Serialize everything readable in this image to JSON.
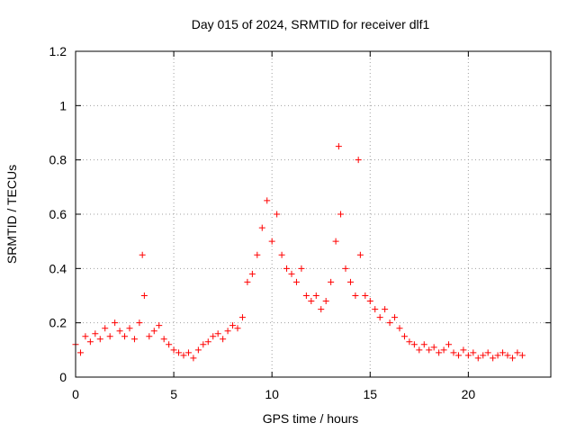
{
  "chart_data": {
    "type": "scatter",
    "title": "Day 015 of 2024, SRMTID for receiver dlf1",
    "xlabel": "GPS time / hours",
    "ylabel": "SRMTID / TECUs",
    "xlim": [
      0,
      24.2
    ],
    "ylim": [
      0,
      1.2
    ],
    "x_ticks": [
      0,
      5,
      10,
      15,
      20
    ],
    "y_ticks": [
      0,
      0.2,
      0.4,
      0.6,
      0.8,
      1,
      1.2
    ],
    "y_tick_labels": [
      "0",
      "0.2",
      "0.4",
      "0.6",
      "0.8",
      "1",
      "1.2"
    ],
    "grid": true,
    "marker": "+",
    "series": [
      {
        "name": "dlf1",
        "color": "#ff0000",
        "x": [
          0.0,
          0.25,
          0.5,
          0.75,
          1.0,
          1.25,
          1.5,
          1.75,
          2.0,
          2.25,
          2.5,
          2.75,
          3.0,
          3.25,
          3.4,
          3.5,
          3.75,
          4.0,
          4.25,
          4.5,
          4.75,
          5.0,
          5.25,
          5.5,
          5.75,
          6.0,
          6.25,
          6.5,
          6.75,
          7.0,
          7.25,
          7.5,
          7.75,
          8.0,
          8.25,
          8.5,
          8.75,
          9.0,
          9.25,
          9.5,
          9.75,
          10.0,
          10.25,
          10.5,
          10.75,
          11.0,
          11.25,
          11.5,
          11.75,
          12.0,
          12.25,
          12.5,
          12.75,
          13.0,
          13.25,
          13.4,
          13.5,
          13.75,
          14.0,
          14.25,
          14.4,
          14.5,
          14.75,
          15.0,
          15.25,
          15.5,
          15.75,
          16.0,
          16.25,
          16.5,
          16.75,
          17.0,
          17.25,
          17.5,
          17.75,
          18.0,
          18.25,
          18.5,
          18.75,
          19.0,
          19.25,
          19.5,
          19.75,
          20.0,
          20.25,
          20.5,
          20.75,
          21.0,
          21.25,
          21.5,
          21.75,
          22.0,
          22.25,
          22.5,
          22.75
        ],
        "y": [
          0.12,
          0.09,
          0.15,
          0.13,
          0.16,
          0.14,
          0.18,
          0.15,
          0.2,
          0.17,
          0.15,
          0.18,
          0.14,
          0.2,
          0.45,
          0.3,
          0.15,
          0.17,
          0.19,
          0.14,
          0.12,
          0.1,
          0.09,
          0.08,
          0.09,
          0.07,
          0.1,
          0.12,
          0.13,
          0.15,
          0.16,
          0.14,
          0.17,
          0.19,
          0.18,
          0.22,
          0.35,
          0.38,
          0.45,
          0.55,
          0.65,
          0.5,
          0.6,
          0.45,
          0.4,
          0.38,
          0.35,
          0.4,
          0.3,
          0.28,
          0.3,
          0.25,
          0.28,
          0.35,
          0.5,
          0.85,
          0.6,
          0.4,
          0.35,
          0.3,
          0.8,
          0.45,
          0.3,
          0.28,
          0.25,
          0.22,
          0.25,
          0.2,
          0.22,
          0.18,
          0.15,
          0.13,
          0.12,
          0.1,
          0.12,
          0.1,
          0.11,
          0.09,
          0.1,
          0.12,
          0.09,
          0.08,
          0.1,
          0.08,
          0.09,
          0.07,
          0.08,
          0.09,
          0.07,
          0.08,
          0.09,
          0.08,
          0.07,
          0.09,
          0.08
        ]
      }
    ]
  }
}
